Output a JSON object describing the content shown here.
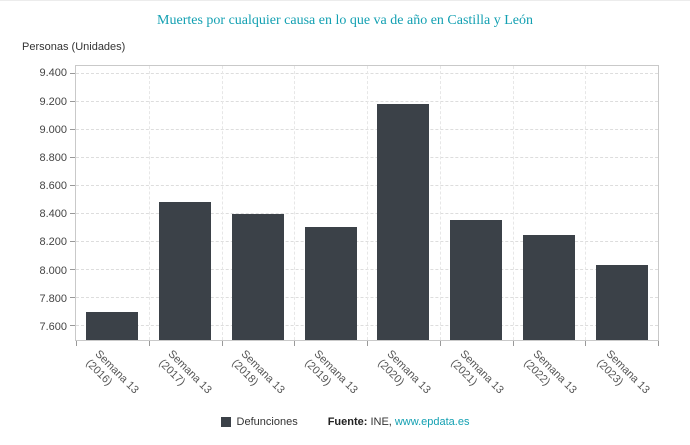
{
  "title": "Muertes por cualquier causa en lo que va de año en Castilla y León",
  "colors": {
    "accent_teal": "#13a0b2",
    "bar": "#3b4148",
    "grid": "#dddddd",
    "axis": "#c9c9c9",
    "tick_text": "#444444"
  },
  "chart_data": {
    "type": "bar",
    "title": "Muertes por cualquier causa en lo que va de año en Castilla y León",
    "ylabel": "Personas (Unidades)",
    "xlabel": "",
    "categories": [
      "Semana 13 (2016)",
      "Semana 13 (2017)",
      "Semana 13 (2018)",
      "Semana 13 (2019)",
      "Semana 13 (2020)",
      "Semana 13 (2021)",
      "Semana 13 (2022)",
      "Semana 13 (2023)"
    ],
    "values": [
      7700,
      8490,
      8400,
      8310,
      9190,
      8360,
      8250,
      8040
    ],
    "ylim": [
      7500,
      9460
    ],
    "yticks": [
      9400,
      9200,
      9000,
      8800,
      8600,
      8400,
      8200,
      8000,
      7800,
      7600
    ],
    "ytick_labels": [
      "9.400",
      "9.200",
      "9.000",
      "8.800",
      "8.600",
      "8.400",
      "8.200",
      "8.000",
      "7.800",
      "7.600"
    ],
    "grid": true,
    "legend_position": "bottom",
    "legend": [
      {
        "label": "Defunciones"
      }
    ],
    "source": {
      "prefix": "Fuente:",
      "name": "INE,",
      "link": "www.epdata.es"
    }
  }
}
